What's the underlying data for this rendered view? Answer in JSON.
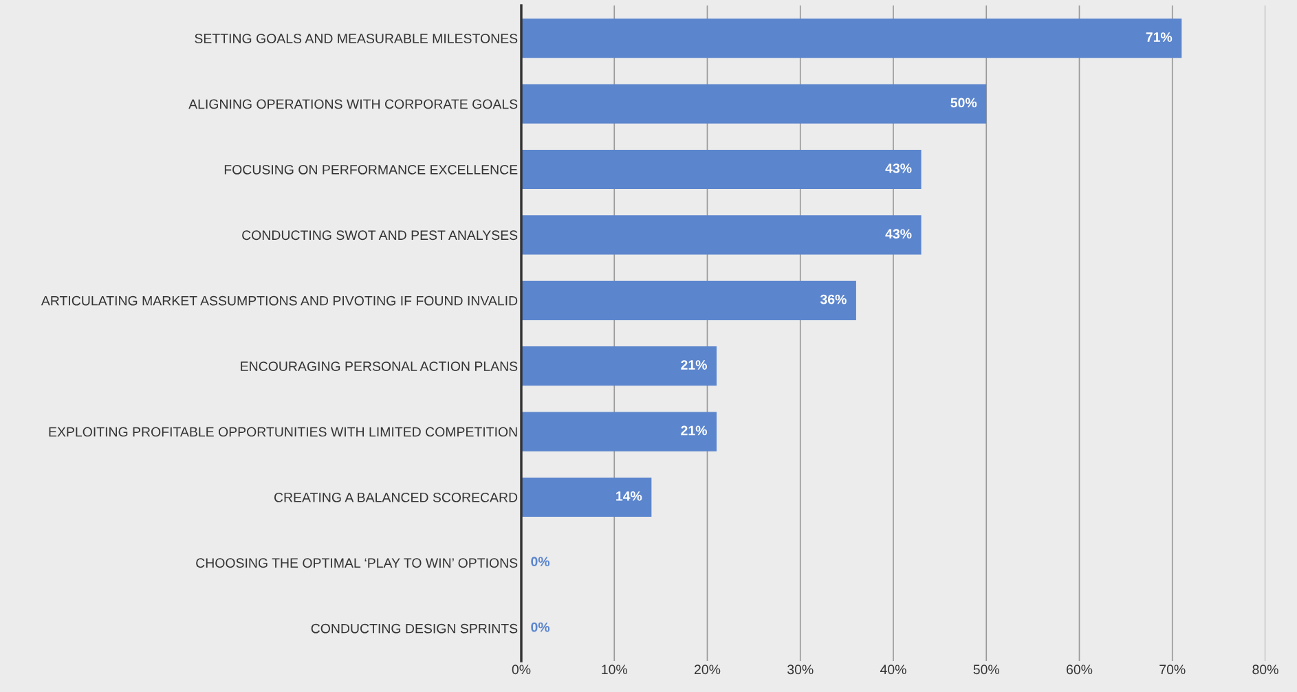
{
  "chart_data": {
    "type": "bar",
    "orientation": "horizontal",
    "categories": [
      "SETTING GOALS AND MEASURABLE MILESTONES",
      "ALIGNING OPERATIONS WITH CORPORATE GOALS",
      "FOCUSING ON PERFORMANCE EXCELLENCE",
      "CONDUCTING SWOT AND PEST ANALYSES",
      "ARTICULATING MARKET ASSUMPTIONS AND PIVOTING IF FOUND INVALID",
      "ENCOURAGING PERSONAL ACTION PLANS",
      "EXPLOITING PROFITABLE OPPORTUNITIES WITH LIMITED COMPETITION",
      "CREATING A BALANCED SCORECARD",
      "CHOOSING THE OPTIMAL ‘PLAY TO WIN’ OPTIONS",
      "CONDUCTING DESIGN SPRINTS"
    ],
    "values": [
      71,
      50,
      43,
      43,
      36,
      21,
      21,
      14,
      0,
      0
    ],
    "value_labels": [
      "71%",
      "50%",
      "43%",
      "43%",
      "36%",
      "21%",
      "21%",
      "14%",
      "0%",
      "0%"
    ],
    "color": "#5b85cd",
    "xlim": [
      0,
      80
    ],
    "xticks": [
      {
        "value": 0,
        "label": "0%"
      },
      {
        "value": 10,
        "label": "10%"
      },
      {
        "value": 20,
        "label": "20%"
      },
      {
        "value": 30,
        "label": "30%"
      },
      {
        "value": 40,
        "label": "40%"
      },
      {
        "value": 50,
        "label": "50%"
      },
      {
        "value": 60,
        "label": "60%"
      },
      {
        "value": 70,
        "label": "70%"
      },
      {
        "value": 80,
        "label": "80%"
      }
    ],
    "grid": "x",
    "legend": false
  }
}
